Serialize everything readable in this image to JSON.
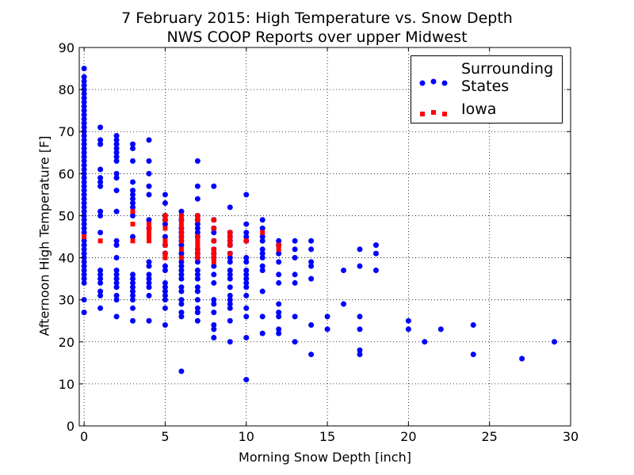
{
  "chart_data": {
    "type": "scatter",
    "title": "7 February 2015: High Temperature  vs. Snow Depth",
    "subtitle": "NWS COOP Reports over upper Midwest",
    "xlabel": "Morning Snow Depth [inch]",
    "ylabel": "Afternoon High Temperature [F]",
    "xlim": [
      -0.3,
      30
    ],
    "ylim": [
      0,
      90
    ],
    "xticks": [
      0,
      5,
      10,
      15,
      20,
      25,
      30
    ],
    "yticks": [
      0,
      10,
      20,
      30,
      40,
      50,
      60,
      70,
      80,
      90
    ],
    "grid": true,
    "legend_position": "top-right",
    "series": [
      {
        "name": "Surrounding States",
        "marker": "circle",
        "color": "#0000ff",
        "points": [
          [
            0,
            85
          ],
          [
            0,
            83
          ],
          [
            0,
            82
          ],
          [
            0,
            81
          ],
          [
            0,
            80
          ],
          [
            0,
            79
          ],
          [
            0,
            78
          ],
          [
            0,
            77
          ],
          [
            0,
            76
          ],
          [
            0,
            75
          ],
          [
            0,
            74
          ],
          [
            0,
            73
          ],
          [
            0,
            72
          ],
          [
            0,
            71
          ],
          [
            0,
            70
          ],
          [
            0,
            69
          ],
          [
            0,
            68
          ],
          [
            0,
            67
          ],
          [
            0,
            66
          ],
          [
            0,
            65
          ],
          [
            0,
            64
          ],
          [
            0,
            63
          ],
          [
            0,
            62
          ],
          [
            0,
            61
          ],
          [
            0,
            60
          ],
          [
            0,
            59
          ],
          [
            0,
            58
          ],
          [
            0,
            57
          ],
          [
            0,
            56
          ],
          [
            0,
            55
          ],
          [
            0,
            54
          ],
          [
            0,
            53
          ],
          [
            0,
            52
          ],
          [
            0,
            51
          ],
          [
            0,
            50
          ],
          [
            0,
            49
          ],
          [
            0,
            48
          ],
          [
            0,
            47
          ],
          [
            0,
            46
          ],
          [
            0,
            44
          ],
          [
            0,
            43
          ],
          [
            0,
            42
          ],
          [
            0,
            41
          ],
          [
            0,
            40
          ],
          [
            0,
            39
          ],
          [
            0,
            38
          ],
          [
            0,
            37
          ],
          [
            0,
            36
          ],
          [
            0,
            35
          ],
          [
            0,
            34
          ],
          [
            0,
            30
          ],
          [
            0,
            27
          ],
          [
            1,
            71
          ],
          [
            1,
            68
          ],
          [
            1,
            67
          ],
          [
            1,
            61
          ],
          [
            1,
            59
          ],
          [
            1,
            58
          ],
          [
            1,
            57
          ],
          [
            1,
            51
          ],
          [
            1,
            50
          ],
          [
            1,
            46
          ],
          [
            1,
            37
          ],
          [
            1,
            36
          ],
          [
            1,
            35
          ],
          [
            1,
            34
          ],
          [
            1,
            32
          ],
          [
            1,
            31
          ],
          [
            1,
            28
          ],
          [
            2,
            69
          ],
          [
            2,
            68
          ],
          [
            2,
            67
          ],
          [
            2,
            66
          ],
          [
            2,
            65
          ],
          [
            2,
            64
          ],
          [
            2,
            63
          ],
          [
            2,
            60
          ],
          [
            2,
            59
          ],
          [
            2,
            56
          ],
          [
            2,
            51
          ],
          [
            2,
            44
          ],
          [
            2,
            43
          ],
          [
            2,
            40
          ],
          [
            2,
            37
          ],
          [
            2,
            36
          ],
          [
            2,
            35
          ],
          [
            2,
            34
          ],
          [
            2,
            33
          ],
          [
            2,
            31
          ],
          [
            2,
            30
          ],
          [
            2,
            26
          ],
          [
            3,
            67
          ],
          [
            3,
            66
          ],
          [
            3,
            63
          ],
          [
            3,
            58
          ],
          [
            3,
            56
          ],
          [
            3,
            55
          ],
          [
            3,
            54
          ],
          [
            3,
            53
          ],
          [
            3,
            52
          ],
          [
            3,
            50
          ],
          [
            3,
            45
          ],
          [
            3,
            36
          ],
          [
            3,
            35
          ],
          [
            3,
            34
          ],
          [
            3,
            33
          ],
          [
            3,
            32
          ],
          [
            3,
            31
          ],
          [
            3,
            30
          ],
          [
            3,
            28
          ],
          [
            3,
            25
          ],
          [
            4,
            68
          ],
          [
            4,
            63
          ],
          [
            4,
            60
          ],
          [
            4,
            57
          ],
          [
            4,
            55
          ],
          [
            4,
            49
          ],
          [
            4,
            47
          ],
          [
            4,
            39
          ],
          [
            4,
            38
          ],
          [
            4,
            36
          ],
          [
            4,
            35
          ],
          [
            4,
            34
          ],
          [
            4,
            33
          ],
          [
            4,
            31
          ],
          [
            4,
            25
          ],
          [
            5,
            55
          ],
          [
            5,
            53
          ],
          [
            5,
            50
          ],
          [
            5,
            49
          ],
          [
            5,
            48
          ],
          [
            5,
            45
          ],
          [
            5,
            43
          ],
          [
            5,
            41
          ],
          [
            5,
            38
          ],
          [
            5,
            37
          ],
          [
            5,
            34
          ],
          [
            5,
            33
          ],
          [
            5,
            32
          ],
          [
            5,
            31
          ],
          [
            5,
            30
          ],
          [
            5,
            28
          ],
          [
            5,
            24
          ],
          [
            6,
            51
          ],
          [
            6,
            49
          ],
          [
            6,
            47
          ],
          [
            6,
            46
          ],
          [
            6,
            45
          ],
          [
            6,
            44
          ],
          [
            6,
            43
          ],
          [
            6,
            41
          ],
          [
            6,
            39
          ],
          [
            6,
            38
          ],
          [
            6,
            37
          ],
          [
            6,
            36
          ],
          [
            6,
            35
          ],
          [
            6,
            33
          ],
          [
            6,
            32
          ],
          [
            6,
            30
          ],
          [
            6,
            29
          ],
          [
            6,
            27
          ],
          [
            6,
            26
          ],
          [
            6,
            13
          ],
          [
            7,
            63
          ],
          [
            7,
            57
          ],
          [
            7,
            54
          ],
          [
            7,
            50
          ],
          [
            7,
            49
          ],
          [
            7,
            48
          ],
          [
            7,
            47
          ],
          [
            7,
            46
          ],
          [
            7,
            45
          ],
          [
            7,
            42
          ],
          [
            7,
            41
          ],
          [
            7,
            40
          ],
          [
            7,
            39
          ],
          [
            7,
            37
          ],
          [
            7,
            36
          ],
          [
            7,
            35
          ],
          [
            7,
            33
          ],
          [
            7,
            32
          ],
          [
            7,
            30
          ],
          [
            7,
            28
          ],
          [
            7,
            27
          ],
          [
            7,
            25
          ],
          [
            8,
            57
          ],
          [
            8,
            49
          ],
          [
            8,
            47
          ],
          [
            8,
            46
          ],
          [
            8,
            44
          ],
          [
            8,
            42
          ],
          [
            8,
            41
          ],
          [
            8,
            40
          ],
          [
            8,
            38
          ],
          [
            8,
            36
          ],
          [
            8,
            34
          ],
          [
            8,
            30
          ],
          [
            8,
            29
          ],
          [
            8,
            27
          ],
          [
            8,
            24
          ],
          [
            8,
            23
          ],
          [
            8,
            21
          ],
          [
            9,
            52
          ],
          [
            9,
            46
          ],
          [
            9,
            45
          ],
          [
            9,
            44
          ],
          [
            9,
            43
          ],
          [
            9,
            41
          ],
          [
            9,
            40
          ],
          [
            9,
            39
          ],
          [
            9,
            37
          ],
          [
            9,
            36
          ],
          [
            9,
            35
          ],
          [
            9,
            33
          ],
          [
            9,
            31
          ],
          [
            9,
            30
          ],
          [
            9,
            29
          ],
          [
            9,
            28
          ],
          [
            9,
            25
          ],
          [
            9,
            20
          ],
          [
            10,
            55
          ],
          [
            10,
            48
          ],
          [
            10,
            46
          ],
          [
            10,
            45
          ],
          [
            10,
            44
          ],
          [
            10,
            40
          ],
          [
            10,
            39
          ],
          [
            10,
            37
          ],
          [
            10,
            36
          ],
          [
            10,
            35
          ],
          [
            10,
            34
          ],
          [
            10,
            33
          ],
          [
            10,
            31
          ],
          [
            10,
            28
          ],
          [
            10,
            26
          ],
          [
            10,
            21
          ],
          [
            10,
            11
          ],
          [
            11,
            49
          ],
          [
            11,
            47
          ],
          [
            11,
            45
          ],
          [
            11,
            44
          ],
          [
            11,
            42
          ],
          [
            11,
            41
          ],
          [
            11,
            40
          ],
          [
            11,
            38
          ],
          [
            11,
            37
          ],
          [
            11,
            32
          ],
          [
            11,
            26
          ],
          [
            11,
            22
          ],
          [
            12,
            44
          ],
          [
            12,
            43
          ],
          [
            12,
            41
          ],
          [
            12,
            39
          ],
          [
            12,
            36
          ],
          [
            12,
            34
          ],
          [
            12,
            29
          ],
          [
            12,
            27
          ],
          [
            12,
            26
          ],
          [
            12,
            23
          ],
          [
            12,
            22
          ],
          [
            13,
            44
          ],
          [
            13,
            42
          ],
          [
            13,
            40
          ],
          [
            13,
            36
          ],
          [
            13,
            34
          ],
          [
            13,
            26
          ],
          [
            13,
            20
          ],
          [
            14,
            44
          ],
          [
            14,
            42
          ],
          [
            14,
            39
          ],
          [
            14,
            38
          ],
          [
            14,
            35
          ],
          [
            14,
            24
          ],
          [
            14,
            17
          ],
          [
            15,
            26
          ],
          [
            15,
            23
          ],
          [
            16,
            37
          ],
          [
            16,
            29
          ],
          [
            17,
            42
          ],
          [
            17,
            38
          ],
          [
            17,
            26
          ],
          [
            17,
            23
          ],
          [
            17,
            18
          ],
          [
            17,
            17
          ],
          [
            18,
            43
          ],
          [
            18,
            41
          ],
          [
            18,
            37
          ],
          [
            20,
            25
          ],
          [
            20,
            23
          ],
          [
            21,
            20
          ],
          [
            22,
            23
          ],
          [
            24,
            24
          ],
          [
            24,
            17
          ],
          [
            27,
            16
          ],
          [
            29,
            20
          ]
        ]
      },
      {
        "name": "Iowa",
        "marker": "square",
        "color": "#ff0000",
        "points": [
          [
            0,
            45
          ],
          [
            1,
            44
          ],
          [
            3,
            51
          ],
          [
            3,
            48
          ],
          [
            3,
            44
          ],
          [
            4,
            48
          ],
          [
            4,
            47
          ],
          [
            4,
            46
          ],
          [
            4,
            45
          ],
          [
            4,
            44
          ],
          [
            5,
            50
          ],
          [
            5,
            49
          ],
          [
            5,
            47
          ],
          [
            5,
            44
          ],
          [
            5,
            43
          ],
          [
            5,
            41
          ],
          [
            5,
            40
          ],
          [
            6,
            50
          ],
          [
            6,
            49
          ],
          [
            6,
            48
          ],
          [
            6,
            47
          ],
          [
            6,
            46
          ],
          [
            6,
            45
          ],
          [
            6,
            44
          ],
          [
            6,
            42
          ],
          [
            6,
            40
          ],
          [
            7,
            50
          ],
          [
            7,
            49
          ],
          [
            7,
            45
          ],
          [
            7,
            44
          ],
          [
            7,
            43
          ],
          [
            7,
            42
          ],
          [
            7,
            41
          ],
          [
            7,
            40
          ],
          [
            8,
            49
          ],
          [
            8,
            47
          ],
          [
            8,
            44
          ],
          [
            8,
            42
          ],
          [
            8,
            41
          ],
          [
            8,
            40
          ],
          [
            8,
            39
          ],
          [
            9,
            46
          ],
          [
            9,
            45
          ],
          [
            9,
            44
          ],
          [
            9,
            43
          ],
          [
            9,
            41
          ],
          [
            10,
            44
          ],
          [
            11,
            46
          ],
          [
            12,
            43
          ],
          [
            12,
            42
          ]
        ]
      }
    ]
  }
}
